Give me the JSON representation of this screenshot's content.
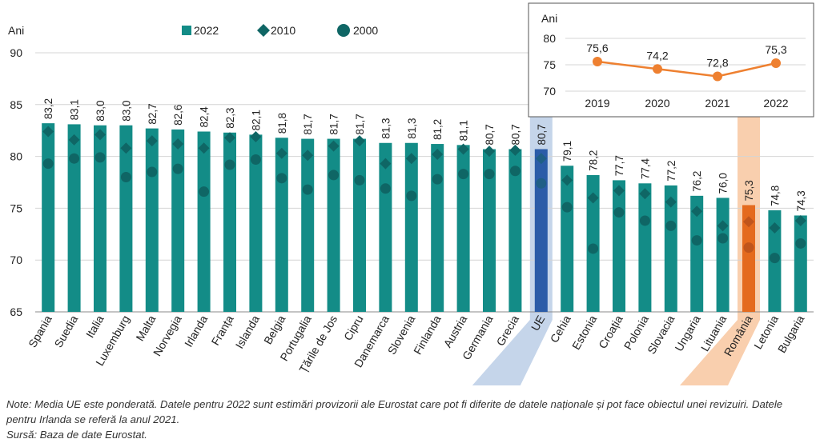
{
  "chart_data": [
    {
      "type": "bar",
      "ylabel": "Ani",
      "ylim": [
        65,
        90
      ],
      "yticks": [
        65,
        70,
        75,
        80,
        85,
        90
      ],
      "grid": true,
      "legend": {
        "placement": "top",
        "items": [
          {
            "label": "2022",
            "marker": "square"
          },
          {
            "label": "2010",
            "marker": "diamond"
          },
          {
            "label": "2000",
            "marker": "circle"
          }
        ]
      },
      "categories": [
        "Spania",
        "Suedia",
        "Italia",
        "Luxemburg",
        "Malta",
        "Norvegia",
        "Irlanda",
        "Franța",
        "Islanda",
        "Belgia",
        "Portugalia",
        "Țările de Jos",
        "Cipru",
        "Danemarca",
        "Slovenia",
        "Finlanda",
        "Austria",
        "Germania",
        "Grecia",
        "UE",
        "Cehia",
        "Estonia",
        "Croația",
        "Polonia",
        "Slovacia",
        "Ungaria",
        "Lituania",
        "România",
        "Letonia",
        "Bulgaria"
      ],
      "series": [
        {
          "name": "2022",
          "shape": "bar",
          "values": [
            83.2,
            83.1,
            83.0,
            83.0,
            82.7,
            82.6,
            82.4,
            82.3,
            82.1,
            81.8,
            81.7,
            81.7,
            81.7,
            81.3,
            81.3,
            81.2,
            81.1,
            80.7,
            80.7,
            80.7,
            79.1,
            78.2,
            77.7,
            77.4,
            77.2,
            76.2,
            76.0,
            75.3,
            74.8,
            74.3
          ],
          "data_labels": [
            "83,2",
            "83,1",
            "83,0",
            "83,0",
            "82,7",
            "82,6",
            "82,4",
            "82,3",
            "82,1",
            "81,8",
            "81,7",
            "81,7",
            "81,7",
            "81,3",
            "81,3",
            "81,2",
            "81,1",
            "80,7",
            "80,7",
            "80,7",
            "79,1",
            "78,2",
            "77,7",
            "77,4",
            "77,2",
            "76,2",
            "76,0",
            "75,3",
            "74,8",
            "74,3"
          ]
        },
        {
          "name": "2010",
          "shape": "diamond",
          "values": [
            82.4,
            81.6,
            82.1,
            80.8,
            81.5,
            81.2,
            80.8,
            81.8,
            81.9,
            80.3,
            80.1,
            81.0,
            81.5,
            79.3,
            79.8,
            80.2,
            80.7,
            80.5,
            80.6,
            79.8,
            77.7,
            76.0,
            76.7,
            76.4,
            75.6,
            74.7,
            73.3,
            73.7,
            73.1,
            73.8
          ]
        },
        {
          "name": "2000",
          "shape": "circle",
          "values": [
            79.3,
            79.8,
            79.9,
            78.0,
            78.5,
            78.8,
            76.6,
            79.2,
            79.7,
            77.9,
            76.8,
            78.2,
            77.7,
            76.9,
            76.2,
            77.8,
            78.3,
            78.3,
            78.6,
            77.4,
            75.1,
            71.1,
            74.6,
            73.8,
            73.3,
            71.9,
            72.1,
            71.2,
            70.2,
            71.6
          ]
        }
      ],
      "highlights": [
        {
          "category": "UE",
          "bar_color": "#2b5ca8",
          "band_color": "#c5d5ea",
          "marker_color": "#1f5f86"
        },
        {
          "category": "România",
          "bar_color": "#e46a1e",
          "band_color": "#f9cfae",
          "marker_color": "#c0551c"
        }
      ]
    },
    {
      "type": "line",
      "ylabel": "Ani",
      "ylim": [
        70,
        80
      ],
      "yticks": [
        70,
        75,
        80
      ],
      "grid": true,
      "x": [
        "2019",
        "2020",
        "2021",
        "2022"
      ],
      "series": [
        {
          "name": "",
          "values": [
            75.6,
            74.2,
            72.8,
            75.3
          ],
          "data_labels": [
            "75,6",
            "74,2",
            "72,8",
            "75,3"
          ]
        }
      ]
    }
  ],
  "colors": {
    "bar": "#138c87",
    "marker": "#0f6665",
    "line": "#ee8030",
    "grid": "#d4d4d4",
    "axis": "#888888"
  },
  "notes": {
    "note": "Note: Media UE este ponderată. Datele pentru 2022 sunt estimări provizorii ale Eurostat care pot fi diferite de datele naționale și pot face obiectul unei revizuiri. Datele pentru Irlanda se referă la anul 2021.",
    "source": "Sursă: Baza de date Eurostat."
  }
}
